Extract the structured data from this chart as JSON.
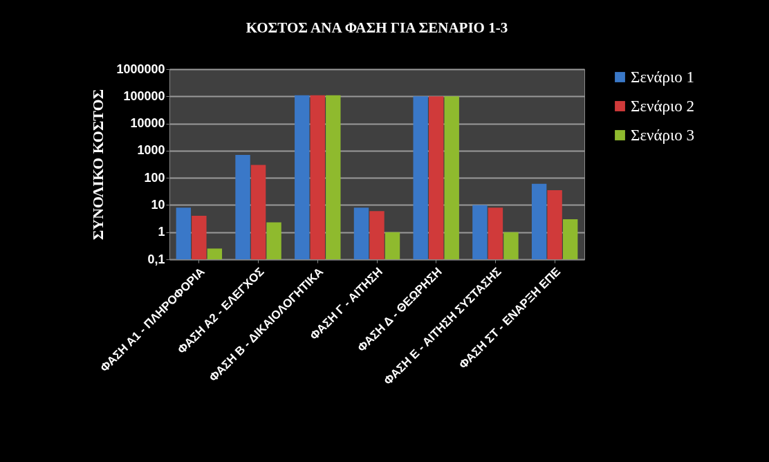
{
  "chart_data": {
    "type": "bar",
    "title": "ΚΟΣΤΟΣ ΑΝΑ ΦΑΣΗ ΓΙΑ ΣΕΝΑΡΙΟ 1-3",
    "ylabel": "ΣΥΝΟΛΙΚΟ ΚΟΣΤΟΣ",
    "categories": [
      "ΦΑΣΗ Α1 - ΠΛΗΡΟΦΟΡΙΑ",
      "ΦΑΣΗ Α2 - ΕΛΕΓΧΟΣ",
      "ΦΑΣΗ Β - ΔΙΚΑΙΟΛΟΓΗΤΙΚΑ",
      "ΦΑΣΗ Γ - ΑΙΤΗΣΗ",
      "ΦΑΣΗ Δ - ΘΕΩΡΗΣΗ",
      "ΦΑΣΗ Ε - ΑΙΤΗΣΗ ΣΥΣΤΑΣΗΣ",
      "ΦΑΣΗ ΣΤ - ΕΝΑΡΞΗ ΕΠΕ"
    ],
    "series": [
      {
        "name": "Σενάριο 1",
        "color": "#3a78c8",
        "values": [
          8,
          700,
          110000,
          8,
          100000,
          10,
          60
        ]
      },
      {
        "name": "Σενάριο 2",
        "color": "#d03a3a",
        "values": [
          4,
          300,
          110000,
          6,
          100000,
          8,
          35
        ]
      },
      {
        "name": "Σενάριο 3",
        "color": "#8fba2e",
        "values": [
          0.25,
          2.3,
          110000,
          1,
          100000,
          1,
          3
        ]
      }
    ],
    "log": true,
    "ylim": [
      0.1,
      1000000
    ],
    "yticks": [
      {
        "value": 0.1,
        "label": "0,1"
      },
      1,
      10,
      100,
      1000,
      10000,
      100000,
      1000000
    ],
    "grid": "y",
    "legend": "right"
  }
}
